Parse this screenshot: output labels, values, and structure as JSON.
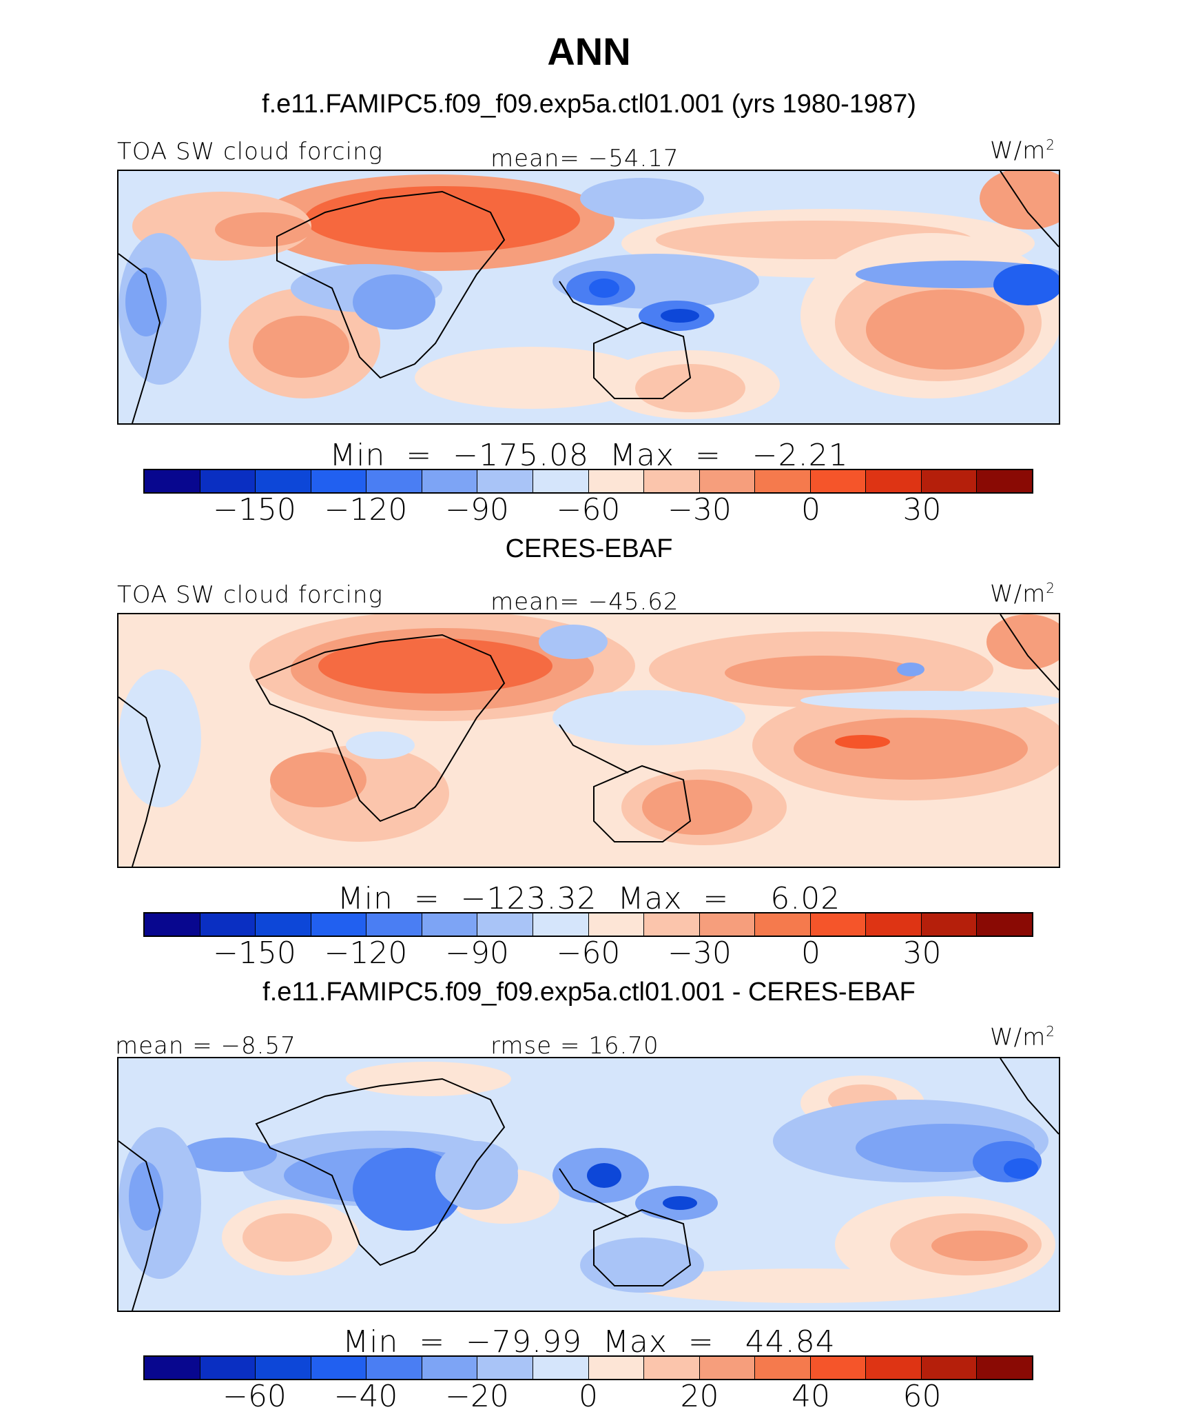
{
  "figure": {
    "title": "ANN",
    "unit": "W/m",
    "unit_sup": "2"
  },
  "palette": [
    "#08078f",
    "#0a2fc2",
    "#0d47d8",
    "#2160f0",
    "#4a7ef3",
    "#7da4f5",
    "#a9c4f7",
    "#d5e5fb",
    "#fde5d6",
    "#fbc5ac",
    "#f69e7c",
    "#f57a4d",
    "#f5552a",
    "#de3414",
    "#b51f0b",
    "#8a0a04"
  ],
  "panels": [
    {
      "case_title": "f.e11.FAMIPC5.f09_f09.exp5a.ctl01.001 (yrs 1980-1987)",
      "left_label": "TOA SW cloud forcing",
      "center_label": "mean= −54.17",
      "min_max": "Min  =  −175.08  Max  =   −2.21",
      "colorbar_ticks": [
        "−150",
        "−120",
        "−90",
        "−60",
        "−30",
        "0",
        "30"
      ]
    },
    {
      "case_title": "CERES-EBAF",
      "left_label": "TOA SW cloud forcing",
      "center_label": "mean= −45.62",
      "min_max": "Min  =  −123.32  Max  =    6.02",
      "colorbar_ticks": [
        "−150",
        "−120",
        "−90",
        "−60",
        "−30",
        "0",
        "30"
      ]
    },
    {
      "case_title": "f.e11.FAMIPC5.f09_f09.exp5a.ctl01.001 - CERES-EBAF",
      "left_label": "mean  =   −8.57",
      "center_label": "rmse  =   16.70",
      "min_max": "Min  =  −79.99  Max  =   44.84",
      "colorbar_ticks": [
        "−60",
        "−40",
        "−20",
        "0",
        "20",
        "40",
        "60"
      ]
    }
  ]
}
